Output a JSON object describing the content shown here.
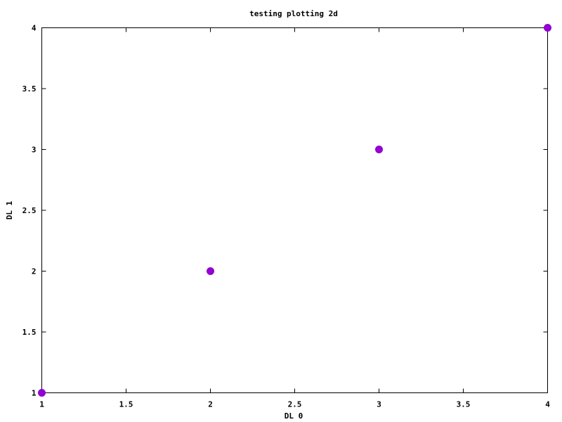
{
  "chart_data": {
    "type": "scatter",
    "title": "testing plotting 2d",
    "xlabel": "DL 0",
    "ylabel": "DL 1",
    "xlim": [
      1,
      4
    ],
    "ylim": [
      1,
      4
    ],
    "grid": false,
    "xticks": [
      "1",
      "1.5",
      "2",
      "2.5",
      "3",
      "3.5",
      "4"
    ],
    "yticks": [
      "1",
      "1.5",
      "2",
      "2.5",
      "3",
      "3.5",
      "4"
    ],
    "series": [
      {
        "color": "#9400d3",
        "points": [
          {
            "x": 1,
            "y": 1
          },
          {
            "x": 2,
            "y": 2
          },
          {
            "x": 3,
            "y": 3
          },
          {
            "x": 4,
            "y": 4
          }
        ]
      }
    ]
  }
}
